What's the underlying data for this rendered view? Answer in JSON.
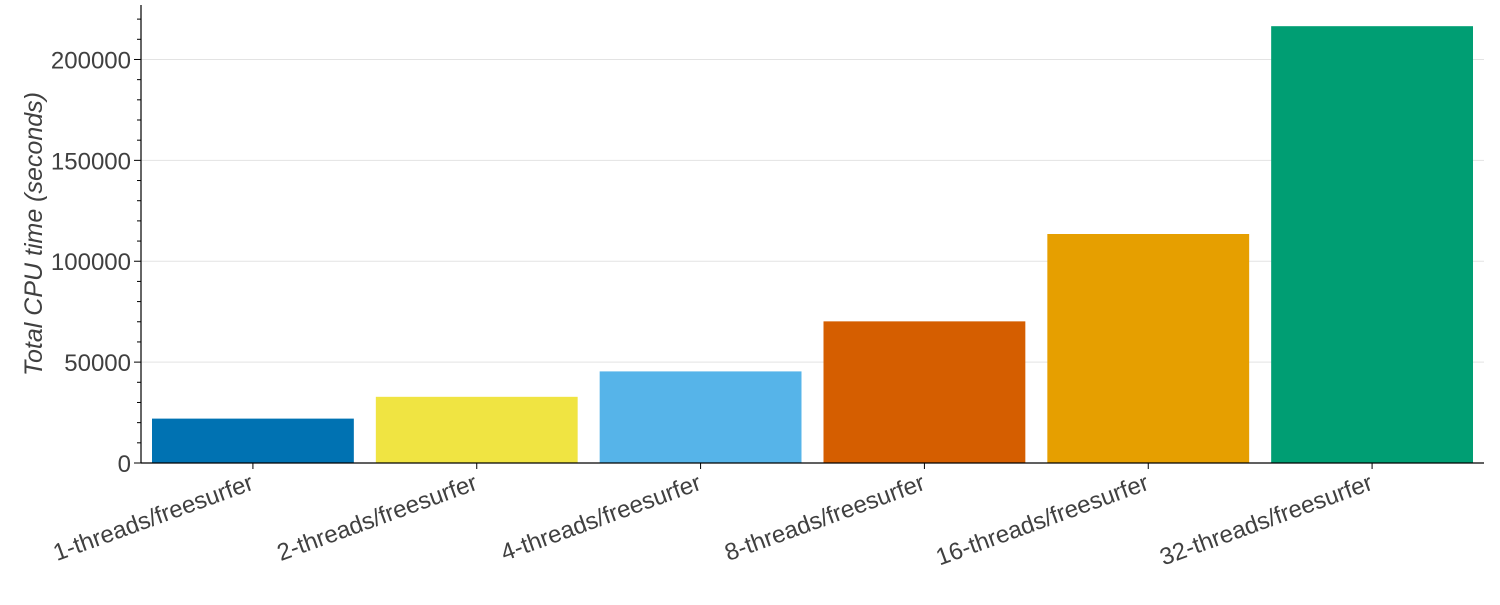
{
  "chart_data": {
    "type": "bar",
    "title": "",
    "xlabel": "",
    "ylabel": "Total CPU time (seconds)",
    "categories": [
      "1-threads/freesurfer",
      "2-threads/freesurfer",
      "4-threads/freesurfer",
      "8-threads/freesurfer",
      "16-threads/freesurfer",
      "32-threads/freesurfer"
    ],
    "values": [
      22000,
      32800,
      45400,
      70200,
      113500,
      216500
    ],
    "colors": [
      "#0072b2",
      "#f0e442",
      "#56b4e9",
      "#d55e00",
      "#e69f00",
      "#009e73"
    ],
    "ylim": [
      0,
      227000
    ],
    "yticks": [
      0,
      50000,
      100000,
      150000,
      200000
    ],
    "ytick_labels": [
      "0",
      "50000",
      "100000",
      "150000",
      "200000"
    ],
    "grid": true,
    "legend": "none"
  }
}
